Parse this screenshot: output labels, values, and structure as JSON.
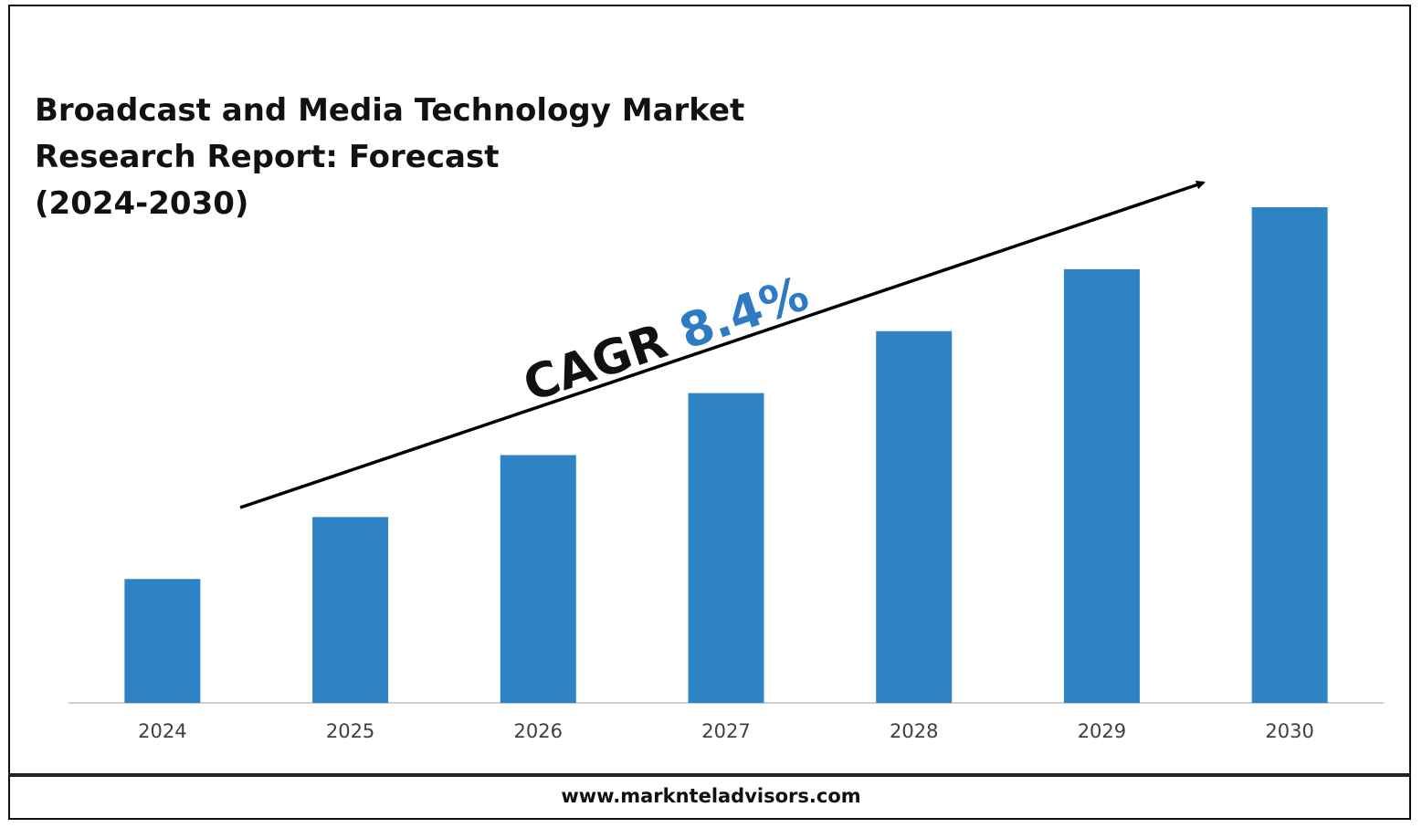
{
  "title_lines": [
    "Broadcast and Media Technology Market",
    "Research Report: Forecast",
    "(2024-2030)"
  ],
  "annotation": {
    "label": "CAGR",
    "value": "8.4%"
  },
  "footer": {
    "url": "www.marknteladvisors.com"
  },
  "colors": {
    "bar": "#2e83c4",
    "annotation_value": "#2e7bc4",
    "axis": "#d0d0d0",
    "arrow": "#000000"
  },
  "chart_data": {
    "type": "bar",
    "title": "Broadcast and Media Technology Market Research Report: Forecast (2024-2030)",
    "categories": [
      "2024",
      "2025",
      "2026",
      "2027",
      "2028",
      "2029",
      "2030"
    ],
    "series": [
      {
        "values": [
          1.0,
          1.5,
          2.0,
          2.5,
          3.0,
          3.5,
          4.0
        ]
      }
    ],
    "ylim": [
      0,
      4
    ],
    "xlabel": "",
    "ylabel": "",
    "grid": false,
    "legend": "none"
  }
}
